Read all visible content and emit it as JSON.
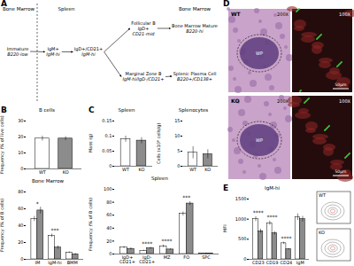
{
  "panel_labels": [
    "A",
    "B",
    "C",
    "D",
    "E"
  ],
  "diagram": {
    "regions": [
      "Bone Marrow",
      "Spleen",
      "Bone Marrow"
    ],
    "nodes": [
      {
        "title": "Immature",
        "lines": [
          "B220-low"
        ]
      },
      {
        "title": "IgM+",
        "lines": [
          "IgM-hi"
        ]
      },
      {
        "title": "IgD+/CD21+",
        "lines": [
          "IgM-hi"
        ]
      },
      {
        "title": "Follicular B",
        "lines": [
          "IgD+",
          "CD21-mid"
        ]
      },
      {
        "title": "Marginal Zone B",
        "lines": [
          "IgM-hi/IgD-/CD21+"
        ]
      },
      {
        "title": "Bone Marrow Mature",
        "lines": [
          "B220-hi"
        ]
      },
      {
        "title": "Splenic Plasma Cell",
        "lines": [
          "B220+/CD138+"
        ]
      }
    ]
  },
  "micrographs": {
    "rows": [
      "WT",
      "KO"
    ],
    "magnifications": [
      "200X",
      "100X"
    ],
    "region_label": "WP",
    "scale_bar": "50µm"
  },
  "flow_plots": {
    "labels": [
      "WT",
      "KO"
    ]
  },
  "chart_data": [
    {
      "type": "bar",
      "title": "B cells",
      "y_label": "Frequency (% of live cells)",
      "categories": [
        "WT",
        "KO"
      ],
      "values": [
        19,
        19
      ],
      "errors": [
        1.5,
        1.2
      ],
      "colors": [
        "#ffffff",
        "#8c8c8c"
      ],
      "ylim": [
        0,
        30
      ],
      "yticks": [
        0,
        10,
        20,
        30
      ]
    },
    {
      "type": "bar",
      "title": "Bone Marrow",
      "y_label": "Frequency (% of B cells)",
      "categories": [
        "IM",
        "IgM-hi",
        "BMM"
      ],
      "series": [
        {
          "name": "WT",
          "color": "#ffffff",
          "values": [
            48,
            28,
            8
          ],
          "errors": [
            3,
            2,
            1
          ]
        },
        {
          "name": "KO",
          "color": "#8c8c8c",
          "values": [
            58,
            14,
            6
          ],
          "errors": [
            4,
            2,
            1
          ]
        }
      ],
      "annotations": [
        {
          "category": "IM",
          "text": "*"
        },
        {
          "category": "IgM-hi",
          "text": "***"
        }
      ],
      "ylim": [
        0,
        80
      ],
      "yticks": [
        0,
        20,
        40,
        60,
        80
      ]
    },
    {
      "type": "bar",
      "title": "Spleen",
      "y_label": "Mass (g)",
      "categories": [
        "WT",
        "KO"
      ],
      "values": [
        0.09,
        0.085
      ],
      "errors": [
        0.01,
        0.01
      ],
      "colors": [
        "#ffffff",
        "#8c8c8c"
      ],
      "ylim": [
        0,
        0.15
      ],
      "yticks": [
        0,
        0.05,
        0.1,
        0.15
      ]
    },
    {
      "type": "bar",
      "title": "Splenocytes",
      "y_label": "Cells (x10⁸ cells/g)",
      "categories": [
        "WT",
        "KO"
      ],
      "values": [
        4.5,
        4
      ],
      "errors": [
        2,
        1.5
      ],
      "colors": [
        "#ffffff",
        "#8c8c8c"
      ],
      "ylim": [
        0,
        15
      ],
      "yticks": [
        0,
        5,
        10,
        15
      ]
    },
    {
      "type": "bar",
      "title": "Spleen",
      "y_label": "Frequency (% of B cells)",
      "categories": [
        "IgD+ CD21+",
        "IgD- CD21+",
        "MZ",
        "FO",
        "SPC"
      ],
      "series": [
        {
          "name": "WT",
          "color": "#ffffff",
          "values": [
            10,
            5,
            12,
            62,
            1
          ],
          "errors": [
            1.5,
            1,
            2,
            3,
            0.3
          ]
        },
        {
          "name": "KO",
          "color": "#8c8c8c",
          "values": [
            8,
            9,
            7,
            78,
            1
          ],
          "errors": [
            1.5,
            1.5,
            1,
            3,
            0.3
          ]
        }
      ],
      "annotations": [
        {
          "category": "IgD- CD21+",
          "text": "****"
        },
        {
          "category": "MZ",
          "text": "****"
        },
        {
          "category": "FO",
          "text": "***"
        }
      ],
      "ylim": [
        0,
        100
      ],
      "yticks": [
        0,
        20,
        40,
        60,
        80,
        100
      ]
    },
    {
      "type": "bar",
      "title": "IgM-hi",
      "y_label": "MFI",
      "categories": [
        "CD23",
        "CD19",
        "CD24",
        "IgM"
      ],
      "series": [
        {
          "name": "WT",
          "color": "#ffffff",
          "values": [
            1000,
            900,
            400,
            1050
          ],
          "errors": [
            60,
            50,
            30,
            80
          ]
        },
        {
          "name": "KO",
          "color": "#8c8c8c",
          "values": [
            700,
            650,
            250,
            1000
          ],
          "errors": [
            50,
            40,
            20,
            70
          ]
        }
      ],
      "annotations": [
        {
          "category": "CD23",
          "text": "****"
        },
        {
          "category": "CD19",
          "text": "****"
        },
        {
          "category": "CD24",
          "text": "****"
        }
      ],
      "ylim": [
        0,
        1500
      ],
      "yticks": [
        0,
        500,
        1000,
        1500
      ]
    }
  ]
}
